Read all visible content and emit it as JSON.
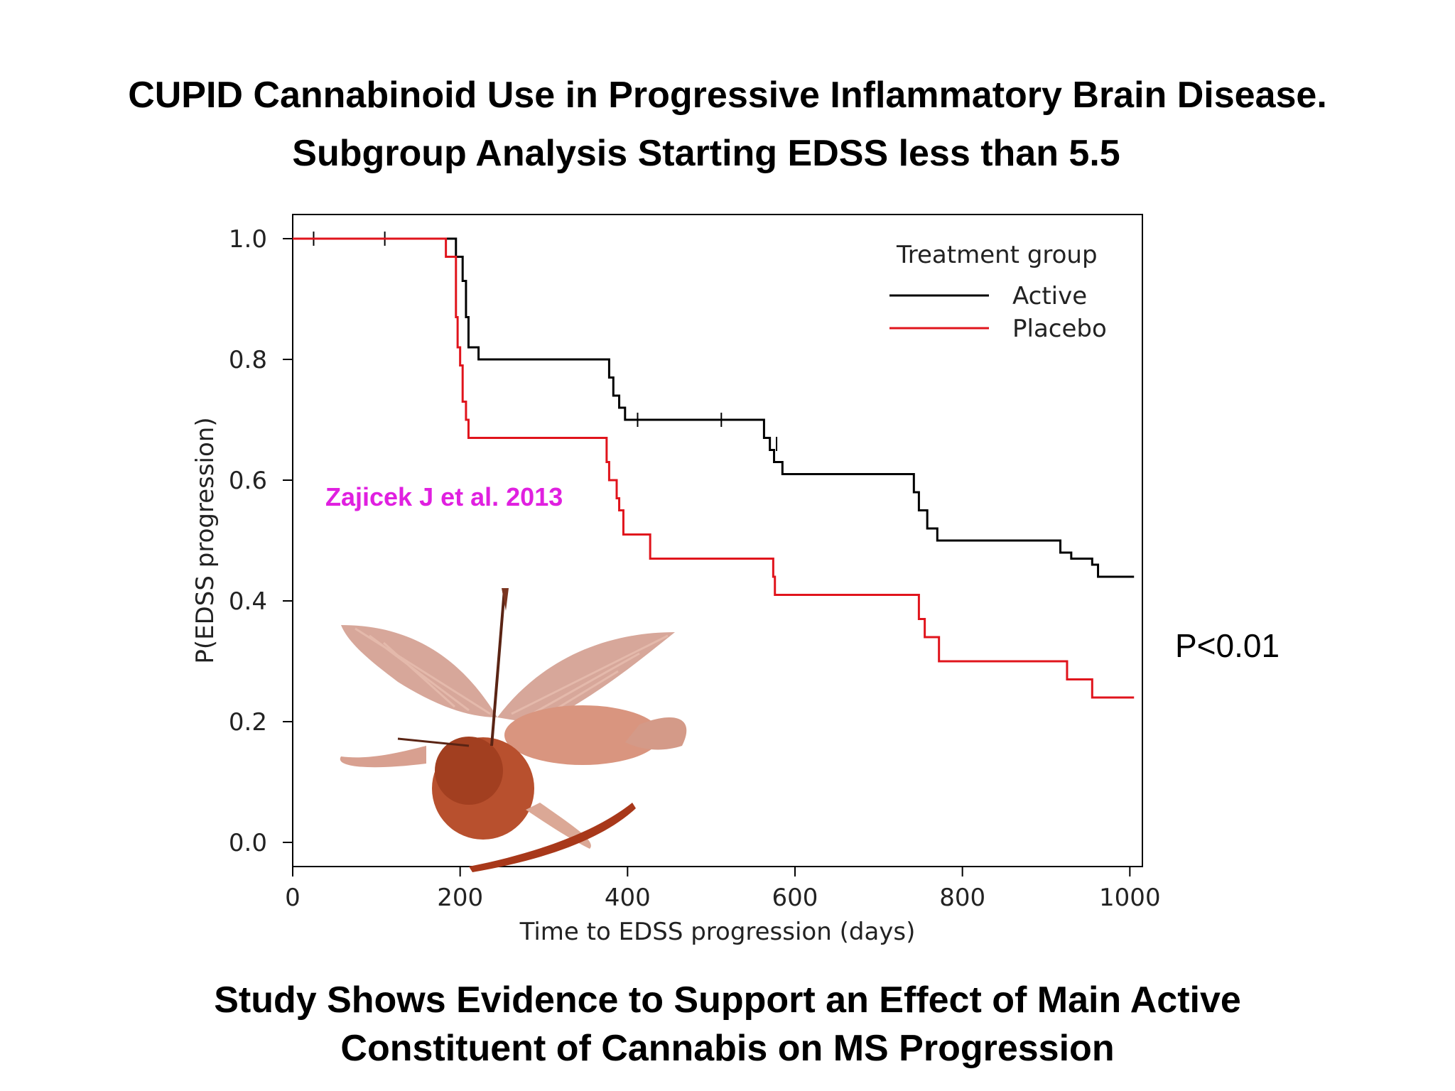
{
  "slide": {
    "title_line1": "CUPID Cannabinoid Use in Progressive Inflammatory Brain Disease.",
    "title_line2": "Subgroup Analysis Starting EDSS less than 5.5",
    "caption_line1": "Study Shows Evidence to Support an Effect of Main Active",
    "caption_line2": "Constituent of  Cannabis on MS Progression",
    "p_value": "P<0.01",
    "citation": "Zajicek J et al. 2013",
    "citation_color": "#e020e0"
  },
  "chart_data": {
    "type": "line",
    "step": true,
    "xlabel": "Time to EDSS progression (days)",
    "ylabel": "P(EDSS progression)",
    "xlim": [
      0,
      1015
    ],
    "ylim": [
      -0.04,
      1.04
    ],
    "xticks": [
      0,
      200,
      400,
      600,
      800,
      1000
    ],
    "yticks": [
      0.0,
      0.2,
      0.4,
      0.6,
      0.8,
      1.0
    ],
    "xtick_labels": [
      "0",
      "200",
      "400",
      "600",
      "800",
      "1000"
    ],
    "ytick_labels": [
      "0.0",
      "0.2",
      "0.4",
      "0.6",
      "0.8",
      "1.0"
    ],
    "grid": false,
    "legend": {
      "title": "Treatment group",
      "placement": "top-right"
    },
    "series": [
      {
        "name": "Active",
        "color": "#000000",
        "steps": [
          [
            0,
            1.0
          ],
          [
            195,
            0.97
          ],
          [
            203,
            0.93
          ],
          [
            207,
            0.87
          ],
          [
            210,
            0.82
          ],
          [
            222,
            0.8
          ],
          [
            378,
            0.77
          ],
          [
            383,
            0.74
          ],
          [
            390,
            0.72
          ],
          [
            397,
            0.7
          ],
          [
            563,
            0.67
          ],
          [
            570,
            0.65
          ],
          [
            575,
            0.63
          ],
          [
            585,
            0.61
          ],
          [
            742,
            0.58
          ],
          [
            748,
            0.55
          ],
          [
            758,
            0.52
          ],
          [
            770,
            0.5
          ],
          [
            917,
            0.48
          ],
          [
            930,
            0.47
          ],
          [
            955,
            0.46
          ],
          [
            962,
            0.44
          ],
          [
            1005,
            0.44
          ]
        ],
        "censor_marks": [
          [
            25,
            1.0
          ],
          [
            110,
            1.0
          ],
          [
            412,
            0.7
          ],
          [
            512,
            0.7
          ],
          [
            578,
            0.66
          ]
        ]
      },
      {
        "name": "Placebo",
        "color": "#e0141c",
        "steps": [
          [
            0,
            1.0
          ],
          [
            183,
            0.97
          ],
          [
            195,
            0.87
          ],
          [
            197,
            0.82
          ],
          [
            200,
            0.79
          ],
          [
            203,
            0.73
          ],
          [
            207,
            0.7
          ],
          [
            210,
            0.67
          ],
          [
            375,
            0.63
          ],
          [
            378,
            0.6
          ],
          [
            387,
            0.57
          ],
          [
            390,
            0.55
          ],
          [
            395,
            0.51
          ],
          [
            427,
            0.47
          ],
          [
            574,
            0.44
          ],
          [
            576,
            0.41
          ],
          [
            748,
            0.37
          ],
          [
            755,
            0.34
          ],
          [
            772,
            0.3
          ],
          [
            925,
            0.27
          ],
          [
            955,
            0.24
          ],
          [
            1005,
            0.24
          ]
        ],
        "censor_marks": []
      }
    ]
  }
}
